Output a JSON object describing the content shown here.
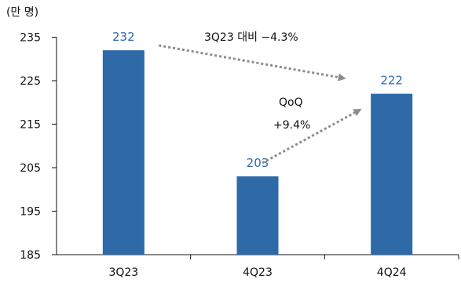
{
  "chart_data": {
    "type": "bar",
    "unit_label": "(만 명)",
    "categories": [
      "3Q23",
      "4Q23",
      "4Q24"
    ],
    "values": [
      232,
      203,
      222
    ],
    "data_labels": [
      "232",
      "203",
      "222"
    ],
    "ylim": [
      185,
      240
    ],
    "yticks": [
      185,
      195,
      205,
      215,
      225,
      235
    ],
    "grid": false,
    "bar_color": "#2e6aa8",
    "label_color": "#2e6aa8",
    "arrow_color": "#8c8c8c",
    "annotations": {
      "yoy": "3Q23 대비 −4.3%",
      "qoq_line1": "QoQ",
      "qoq_line2": "+9.4%"
    }
  }
}
